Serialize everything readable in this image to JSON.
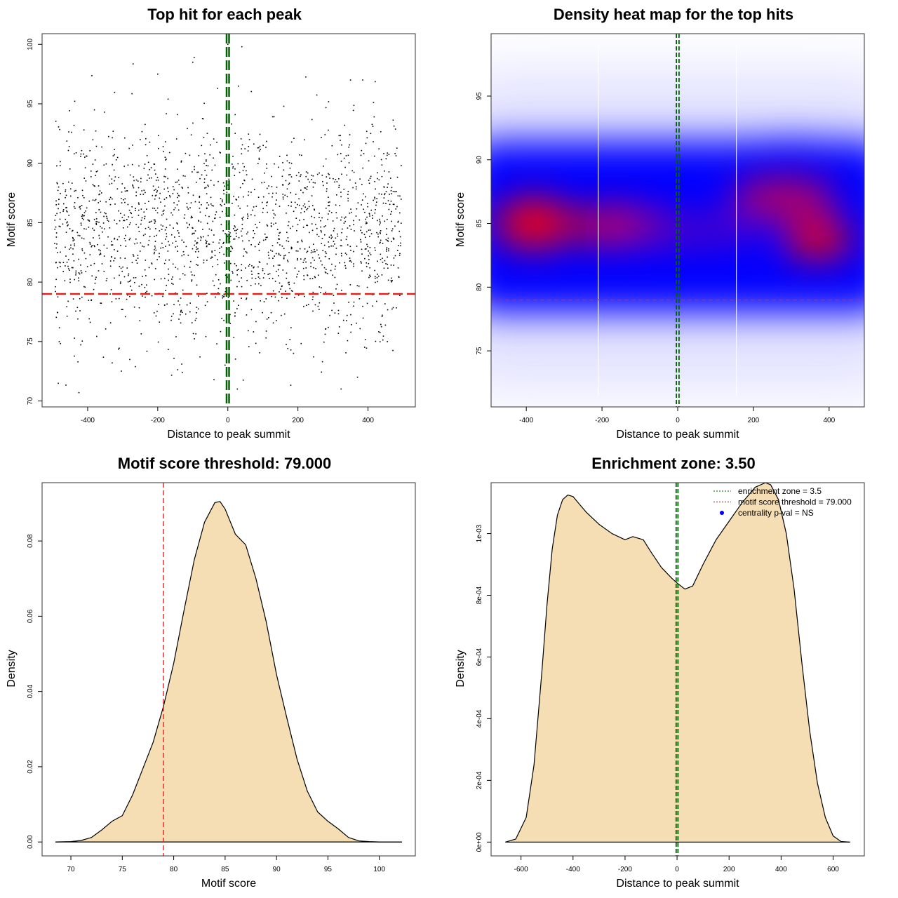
{
  "chart_data": [
    {
      "type": "scatter",
      "title": "Top hit for each peak",
      "xlabel": "Distance to peak summit",
      "ylabel": "Motif score",
      "xlim": [
        -530,
        535
      ],
      "ylim": [
        69.5,
        100.9
      ],
      "x_ticks": [
        -400,
        -200,
        0,
        200,
        400
      ],
      "x_tick_labels": [
        "-400",
        "-200",
        "0",
        "200",
        "400"
      ],
      "y_ticks": [
        70,
        75,
        80,
        85,
        90,
        95,
        100
      ],
      "y_tick_labels": [
        "70",
        "75",
        "80",
        "85",
        "90",
        "95",
        "100"
      ],
      "grid": false,
      "point_count": 1900,
      "score_mean": 84.2,
      "score_sd": 4.4,
      "threshold_score": 79,
      "enrichment_zone": [
        -3.5,
        3.5
      ],
      "points": [
        [
          -425,
          70.7
        ],
        [
          -330,
          73.2
        ],
        [
          -130,
          72.4
        ],
        [
          370,
          72.0
        ],
        [
          -100,
          98.5
        ],
        [
          40,
          99.8
        ],
        [
          350,
          97.0
        ],
        [
          0,
          100.0
        ],
        [
          -200,
          97.5
        ],
        [
          270,
          73.3
        ]
      ],
      "colors": {
        "points": "#000000",
        "threshold": "#dd2222",
        "zone": "#006400"
      }
    },
    {
      "type": "heatmap",
      "title": "Density heat map for the top hits",
      "xlabel": "Distance to peak summit",
      "ylabel": "Motif score",
      "xlim": [
        -493,
        493
      ],
      "ylim": [
        70.6,
        99.9
      ],
      "x_ticks": [
        -400,
        -200,
        0,
        200,
        400
      ],
      "x_tick_labels": [
        "-400",
        "-200",
        "0",
        "200",
        "400"
      ],
      "y_ticks": [
        75,
        80,
        85,
        90,
        95
      ],
      "y_tick_labels": [
        "75",
        "80",
        "85",
        "90",
        "95"
      ],
      "threshold_score": 79,
      "enrichment_zone": [
        -3.5,
        3.5
      ],
      "high_density_centers": [
        [
          -380,
          85.0
        ],
        [
          -160,
          84.8
        ],
        [
          280,
          87.0
        ],
        [
          370,
          83.8
        ]
      ],
      "colors": {
        "low": "#ffffff",
        "mid": "#0000ff",
        "high": "#ff0000",
        "threshold": "#dd2222",
        "zone": "#006400"
      }
    },
    {
      "type": "area",
      "title": "Motif score threshold: 79.000",
      "xlabel": "Motif score",
      "ylabel": "Density",
      "xlim": [
        67.2,
        103.5
      ],
      "ylim": [
        -0.0037,
        0.0955
      ],
      "x_ticks": [
        70,
        75,
        80,
        85,
        90,
        95,
        100
      ],
      "x_tick_labels": [
        "70",
        "75",
        "80",
        "85",
        "90",
        "95",
        "100"
      ],
      "y_ticks": [
        0,
        0.02,
        0.04,
        0.06,
        0.08
      ],
      "y_tick_labels": [
        "0.00",
        "0.02",
        "0.04",
        "0.06",
        "0.08"
      ],
      "threshold_score": 79,
      "x": [
        68.5,
        70,
        71,
        72,
        73,
        74,
        75,
        76,
        77,
        78,
        79,
        80,
        81,
        82,
        83,
        84,
        84.5,
        85,
        86,
        87,
        88,
        89,
        90,
        91,
        92,
        93,
        94,
        95,
        96,
        97,
        98,
        99,
        100,
        101,
        102.2
      ],
      "y": [
        0.0,
        0.0001,
        0.0004,
        0.0012,
        0.0032,
        0.0055,
        0.007,
        0.0125,
        0.0195,
        0.0265,
        0.036,
        0.0475,
        0.0615,
        0.075,
        0.085,
        0.0902,
        0.0905,
        0.0885,
        0.0818,
        0.079,
        0.07,
        0.0585,
        0.0445,
        0.033,
        0.022,
        0.0135,
        0.008,
        0.0055,
        0.0035,
        0.0012,
        0.0003,
        0.0001,
        0.0,
        0.0,
        0.0
      ],
      "colors": {
        "fill": "#f5deb3",
        "line": "#000000",
        "threshold": "#dd2222"
      }
    },
    {
      "type": "area",
      "title": "Enrichment zone: 3.50",
      "xlabel": "Distance to peak summit",
      "ylabel": "Density",
      "xlim": [
        -715,
        720
      ],
      "ylim": [
        -4.48e-05,
        0.001165
      ],
      "x_ticks": [
        -600,
        -400,
        -200,
        0,
        200,
        400,
        600
      ],
      "x_tick_labels": [
        "-600",
        "-400",
        "-200",
        "0",
        "200",
        "400",
        "600"
      ],
      "y_ticks": [
        0,
        0.0002,
        0.0004,
        0.0006,
        0.0008,
        0.001
      ],
      "y_tick_labels": [
        "0e+00",
        "2e-04",
        "4e-04",
        "6e-04",
        "8e-04",
        "1e-03"
      ],
      "enrichment_zone": [
        -3.5,
        3.5
      ],
      "x": [
        -660,
        -620,
        -580,
        -550,
        -520,
        -500,
        -480,
        -460,
        -440,
        -420,
        -400,
        -380,
        -350,
        -300,
        -250,
        -200,
        -170,
        -130,
        -100,
        -60,
        -20,
        0,
        30,
        60,
        100,
        150,
        200,
        250,
        300,
        340,
        360,
        390,
        420,
        450,
        480,
        510,
        540,
        570,
        600,
        630,
        665
      ],
      "y": [
        0.0,
        1e-05,
        8e-05,
        0.00025,
        0.00055,
        0.00077,
        0.00095,
        0.00106,
        0.00111,
        0.001125,
        0.00112,
        0.0011,
        0.00107,
        0.00103,
        0.001,
        0.00098,
        0.00099,
        0.00098,
        0.00094,
        0.00089,
        0.000855,
        0.00084,
        0.00082,
        0.00083,
        0.0009,
        0.00098,
        0.00104,
        0.0011,
        0.00115,
        0.001165,
        0.001158,
        0.00111,
        0.001,
        0.00082,
        0.00058,
        0.00036,
        0.00019,
        8e-05,
        2e-05,
        2e-06,
        0.0
      ],
      "colors": {
        "fill": "#f5deb3",
        "line": "#000000",
        "zone": "#006400"
      },
      "legend": {
        "position": "top-right",
        "entries": [
          {
            "label": "enrichment zone = 3.5",
            "color": "#228b22",
            "style": "dotted-line"
          },
          {
            "label": "motif score threshold = 79.000",
            "color": "#dd2222",
            "style": "dotted-line"
          },
          {
            "label": "centrality p-val = NS",
            "color": "#0000ff",
            "style": "point"
          }
        ]
      }
    }
  ]
}
